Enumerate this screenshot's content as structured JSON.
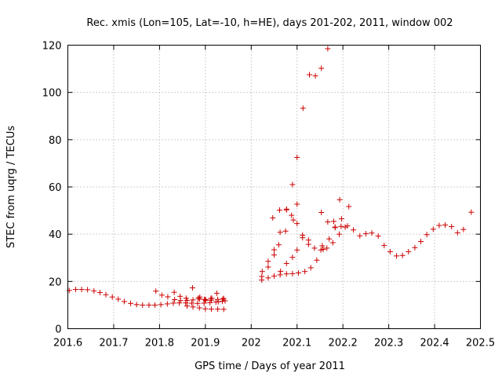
{
  "chart_data": {
    "type": "scatter",
    "title": "Rec. xmis (Lon=105, Lat=-10, h=HE), days 201-202, 2011, window 002",
    "xlabel": "GPS time / Days of year 2011",
    "ylabel": "STEC from uqrg / TECUs",
    "xlim": [
      201.6,
      202.5
    ],
    "ylim": [
      0,
      120
    ],
    "xticks": [
      "201.6",
      "201.7",
      "201.8",
      "201.9",
      "202",
      "202.1",
      "202.2",
      "202.3",
      "202.4",
      "202.5"
    ],
    "yticks": [
      "0",
      "20",
      "40",
      "60",
      "80",
      "100",
      "120"
    ],
    "grid": true,
    "marker": "+",
    "color": "#cc0000",
    "series": [
      {
        "name": "STEC",
        "points": [
          [
            201.603,
            16.2
          ],
          [
            201.617,
            16.6
          ],
          [
            201.63,
            16.6
          ],
          [
            201.643,
            16.5
          ],
          [
            201.657,
            16.0
          ],
          [
            201.67,
            15.3
          ],
          [
            201.683,
            14.4
          ],
          [
            201.697,
            13.4
          ],
          [
            201.71,
            12.5
          ],
          [
            201.723,
            11.5
          ],
          [
            201.737,
            10.7
          ],
          [
            201.75,
            10.2
          ],
          [
            201.763,
            10.0
          ],
          [
            201.777,
            10.0
          ],
          [
            201.79,
            10.0
          ],
          [
            201.803,
            10.2
          ],
          [
            201.817,
            10.5
          ],
          [
            201.83,
            10.8
          ],
          [
            201.843,
            10.9
          ],
          [
            201.857,
            10.9
          ],
          [
            201.87,
            10.8
          ],
          [
            201.883,
            10.7
          ],
          [
            201.897,
            10.8
          ],
          [
            201.91,
            11.0
          ],
          [
            201.923,
            11.3
          ],
          [
            201.937,
            11.6
          ],
          [
            201.943,
            11.8
          ],
          [
            201.792,
            15.9
          ],
          [
            201.805,
            14.2
          ],
          [
            201.818,
            13.5
          ],
          [
            201.832,
            15.4
          ],
          [
            201.845,
            13.7
          ],
          [
            201.858,
            12.9
          ],
          [
            201.872,
            17.3
          ],
          [
            201.885,
            13.0
          ],
          [
            201.898,
            12.4
          ],
          [
            201.912,
            12.8
          ],
          [
            201.925,
            15.0
          ],
          [
            201.938,
            12.5
          ],
          [
            201.833,
            12.3
          ],
          [
            201.846,
            11.9
          ],
          [
            201.86,
            12.0
          ],
          [
            201.873,
            12.2
          ],
          [
            201.887,
            12.5
          ],
          [
            201.9,
            12.3
          ],
          [
            201.913,
            12.1
          ],
          [
            201.927,
            12.4
          ],
          [
            201.94,
            12.8
          ],
          [
            201.86,
            9.6
          ],
          [
            201.873,
            9.2
          ],
          [
            201.887,
            8.8
          ],
          [
            201.9,
            8.4
          ],
          [
            201.913,
            8.3
          ],
          [
            201.927,
            8.3
          ],
          [
            201.94,
            8.2
          ],
          [
            201.888,
            13.4
          ],
          [
            201.901,
            12.0
          ],
          [
            201.914,
            12.9
          ],
          [
            201.928,
            11.4
          ],
          [
            202.023,
            20.6
          ],
          [
            202.037,
            21.5
          ],
          [
            202.05,
            22.3
          ],
          [
            202.063,
            22.8
          ],
          [
            202.077,
            23.2
          ],
          [
            202.09,
            23.3
          ],
          [
            202.103,
            23.6
          ],
          [
            202.117,
            24.2
          ],
          [
            202.13,
            25.8
          ],
          [
            202.143,
            29.0
          ],
          [
            202.157,
            33.6
          ],
          [
            202.17,
            38.0
          ],
          [
            202.183,
            42.8
          ],
          [
            202.197,
            46.5
          ],
          [
            202.21,
            43.5
          ],
          [
            202.223,
            41.8
          ],
          [
            202.237,
            39.3
          ],
          [
            202.25,
            40.2
          ],
          [
            202.263,
            40.5
          ],
          [
            202.277,
            39.2
          ],
          [
            202.29,
            35.2
          ],
          [
            202.303,
            32.6
          ],
          [
            202.317,
            30.8
          ],
          [
            202.33,
            31.0
          ],
          [
            202.343,
            32.6
          ],
          [
            202.357,
            34.3
          ],
          [
            202.37,
            36.9
          ],
          [
            202.383,
            39.8
          ],
          [
            202.397,
            42.1
          ],
          [
            202.41,
            43.7
          ],
          [
            202.423,
            43.9
          ],
          [
            202.437,
            43.2
          ],
          [
            202.45,
            40.6
          ],
          [
            202.463,
            42.0
          ],
          [
            202.48,
            49.3
          ],
          [
            202.024,
            24.2
          ],
          [
            202.037,
            28.5
          ],
          [
            202.05,
            33.4
          ],
          [
            202.063,
            40.8
          ],
          [
            202.077,
            50.6
          ],
          [
            202.09,
            61.0
          ],
          [
            202.1,
            72.5
          ],
          [
            202.113,
            93.3
          ],
          [
            202.127,
            107.5
          ],
          [
            202.14,
            107.0
          ],
          [
            202.153,
            110.2
          ],
          [
            202.167,
            118.5
          ],
          [
            202.023,
            22.1
          ],
          [
            202.037,
            26.1
          ],
          [
            202.05,
            31.2
          ],
          [
            202.06,
            35.5
          ],
          [
            202.075,
            41.3
          ],
          [
            202.088,
            48.0
          ],
          [
            202.1,
            52.7
          ],
          [
            202.112,
            39.6
          ],
          [
            202.125,
            35.7
          ],
          [
            202.138,
            34.1
          ],
          [
            202.152,
            33.3
          ],
          [
            202.165,
            34.1
          ],
          [
            202.178,
            36.4
          ],
          [
            202.192,
            40.0
          ],
          [
            202.205,
            43.0
          ],
          [
            202.047,
            46.9
          ],
          [
            202.062,
            50.2
          ],
          [
            202.077,
            50.3
          ],
          [
            202.092,
            46.0
          ],
          [
            202.1,
            44.5
          ],
          [
            202.064,
            24.3
          ],
          [
            202.077,
            27.6
          ],
          [
            202.09,
            30.2
          ],
          [
            202.1,
            33.3
          ],
          [
            202.112,
            38.5
          ],
          [
            202.125,
            37.5
          ],
          [
            202.153,
            49.2
          ],
          [
            202.167,
            45.2
          ],
          [
            202.18,
            45.4
          ],
          [
            202.193,
            54.6
          ],
          [
            202.213,
            51.7
          ],
          [
            202.183,
            43.0
          ],
          [
            202.196,
            43.3
          ],
          [
            202.155,
            35.1
          ]
        ]
      }
    ]
  }
}
